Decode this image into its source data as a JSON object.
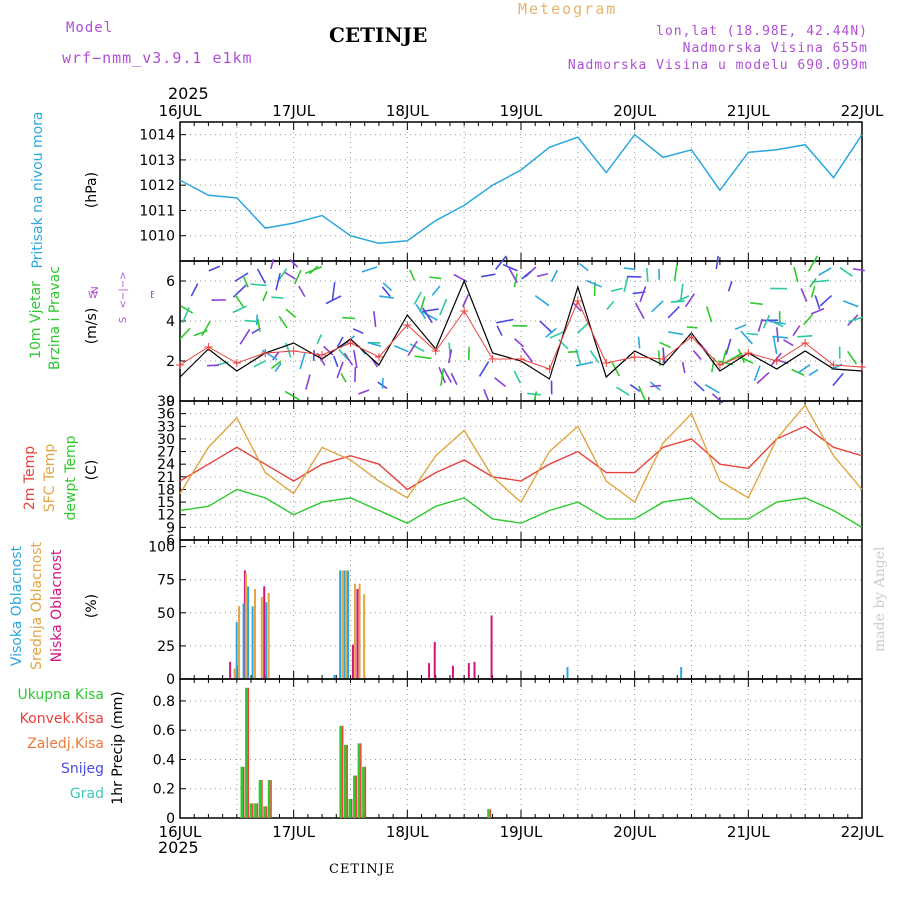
{
  "header": {
    "model_label": "Model",
    "model_name": "wrf−nmm_v3.9.1  e1km",
    "station": "CETINJE",
    "meteogram": "Meteogram",
    "coords": "lon,lat (18.98E, 42.44N)",
    "elevation": "Nadmorska Visina 655m",
    "model_elevation": "Nadmorska Visina u modelu 690.099m",
    "year_top": "2025",
    "year_bottom": "2025",
    "footer_station": "CETINJE",
    "watermark": "made by Angel"
  },
  "colors": {
    "pressure": "#2ba7e0",
    "temp2m": "#e8423c",
    "sfc": "#e2a542",
    "dewpt": "#2ec92e",
    "high_cloud": "#2ba7e0",
    "mid_cloud": "#e2a542",
    "low_cloud": "#d4127e",
    "total_precip": "#2ec92e",
    "conv_precip": "#e8423c",
    "strat_precip": "#f0793a",
    "snow": "#4a4ae0",
    "graupel": "#3fc7b8",
    "wind_speed": "#000000",
    "gust": "#e8423c",
    "compass": "#b04fd6"
  },
  "panels": {
    "pressure": {
      "label1": "Pritisak na nivou mora",
      "unit": "(hPa)"
    },
    "wind": {
      "label1": "10m Vjetar",
      "label2": "Brzina i Pravac",
      "unit": "(m/s)",
      "compass_n": "N",
      "compass_w": "W",
      "compass_e": "E",
      "compass_line": "<−|−>",
      "compass_s": "S"
    },
    "temp": {
      "label1": "2m Temp",
      "label2": "SFC Temp",
      "label3": "dewpt Temp",
      "unit": "(C)"
    },
    "cloud": {
      "label1": "Visoka Oblacnost",
      "label2": "Srednja Oblacnost",
      "label3": "Niska Oblacnost",
      "unit": "(%)"
    },
    "precip": {
      "unit": "1hr Precip (mm)",
      "legend": [
        "Ukupna Kisa",
        "Konvek.Kisa",
        "Zaledj.Kisa",
        "Snijeg",
        "Grad"
      ]
    }
  },
  "chart_data": [
    {
      "type": "line",
      "name_key": "pressure",
      "x_labels": [
        "16JUL",
        "17JUL",
        "18JUL",
        "19JUL",
        "20JUL",
        "21JUL",
        "22JUL"
      ],
      "ylabel": "(hPa)",
      "ylim": [
        1009,
        1014.5
      ],
      "yticks": [
        1010,
        1011,
        1012,
        1013,
        1014
      ],
      "x": [
        0,
        0.25,
        0.5,
        0.75,
        1.0,
        1.25,
        1.5,
        1.75,
        2.0,
        2.25,
        2.5,
        2.75,
        3.0,
        3.25,
        3.5,
        3.75,
        4.0,
        4.25,
        4.5,
        4.75,
        5.0,
        5.25,
        5.5,
        5.75,
        6.0
      ],
      "series": [
        {
          "values": [
            1012.2,
            1011.6,
            1011.5,
            1010.3,
            1010.5,
            1010.8,
            1010.0,
            1009.7,
            1009.8,
            1010.6,
            1011.2,
            1012.0,
            1012.6,
            1013.5,
            1013.9,
            1012.5,
            1014.0,
            1013.1,
            1013.4,
            1011.8,
            1013.3,
            1013.4,
            1013.6,
            1012.3,
            1014.0
          ]
        }
      ],
      "grid": true
    },
    {
      "type": "line",
      "name_key": "wind",
      "ylabel": "(m/s)",
      "ylim": [
        0,
        7
      ],
      "yticks": [
        0,
        2,
        4,
        6
      ],
      "x": [
        0,
        0.25,
        0.5,
        0.75,
        1.0,
        1.25,
        1.5,
        1.75,
        2.0,
        2.25,
        2.5,
        2.75,
        3.0,
        3.25,
        3.5,
        3.75,
        4.0,
        4.25,
        4.5,
        4.75,
        5.0,
        5.25,
        5.5,
        5.75,
        6.0
      ],
      "series": [
        {
          "values": [
            1.2,
            2.6,
            1.5,
            2.4,
            2.9,
            2.1,
            3.1,
            1.8,
            4.3,
            2.6,
            6.0,
            2.4,
            2.0,
            1.1,
            5.7,
            1.2,
            2.5,
            1.8,
            3.4,
            1.5,
            2.4,
            1.6,
            2.5,
            1.6,
            1.5
          ]
        },
        {
          "values": [
            1.8,
            2.7,
            1.9,
            2.4,
            2.5,
            2.3,
            2.9,
            2.2,
            3.8,
            2.5,
            4.5,
            2.1,
            2.1,
            1.6,
            5.0,
            1.9,
            2.2,
            2.1,
            3.2,
            1.8,
            2.4,
            2.0,
            2.9,
            1.8,
            1.7
          ]
        }
      ],
      "grid": true
    },
    {
      "type": "line",
      "name_key": "temp",
      "ylabel": "(C)",
      "ylim": [
        6,
        39
      ],
      "yticks": [
        6,
        9,
        12,
        15,
        18,
        21,
        24,
        27,
        30,
        33,
        36,
        39
      ],
      "x": [
        0,
        0.25,
        0.5,
        0.75,
        1.0,
        1.25,
        1.5,
        1.75,
        2.0,
        2.25,
        2.5,
        2.75,
        3.0,
        3.25,
        3.5,
        3.75,
        4.0,
        4.25,
        4.5,
        4.75,
        5.0,
        5.25,
        5.5,
        5.75,
        6.0
      ],
      "series": [
        {
          "values": [
            20,
            24,
            28,
            24,
            20,
            24,
            26,
            24,
            18,
            22,
            25,
            21,
            20,
            24,
            27,
            22,
            22,
            28,
            30,
            24,
            23,
            30,
            33,
            28,
            26
          ]
        },
        {
          "values": [
            17,
            28,
            35,
            22,
            17,
            28,
            25,
            20,
            16,
            26,
            32,
            21,
            15,
            27,
            33,
            20,
            15,
            29,
            36,
            20,
            16,
            30,
            38,
            26,
            18
          ]
        },
        {
          "values": [
            13,
            14,
            18,
            16,
            12,
            15,
            16,
            13,
            10,
            14,
            16,
            11,
            10,
            13,
            15,
            11,
            11,
            15,
            16,
            11,
            11,
            15,
            16,
            13,
            9
          ]
        }
      ],
      "grid": true
    },
    {
      "type": "bar",
      "name_key": "cloud",
      "ylabel": "(%)",
      "ylim": [
        0,
        105
      ],
      "yticks": [
        0,
        25,
        50,
        75,
        100
      ],
      "x": [
        0.42,
        0.48,
        0.52,
        0.55,
        0.58,
        0.62,
        0.66,
        0.72,
        0.78,
        1.38,
        1.43,
        1.47,
        1.5,
        1.54,
        1.58,
        1.62,
        2.17,
        2.22,
        2.38,
        2.52,
        2.57,
        2.72,
        3.43,
        4.43
      ],
      "series": [
        {
          "values": [
            0,
            0,
            43,
            0,
            57,
            70,
            55,
            0,
            58,
            3,
            82,
            82,
            82,
            0,
            0,
            0,
            0,
            0,
            0,
            0,
            0,
            0,
            9,
            9
          ]
        },
        {
          "values": [
            0,
            8,
            55,
            0,
            80,
            0,
            68,
            62,
            65,
            0,
            82,
            82,
            0,
            72,
            72,
            64,
            0,
            0,
            0,
            0,
            0,
            0,
            0,
            0
          ]
        },
        {
          "values": [
            13,
            10,
            0,
            82,
            0,
            0,
            0,
            70,
            0,
            0,
            0,
            0,
            26,
            68,
            0,
            0,
            12,
            28,
            10,
            12,
            13,
            48,
            0,
            0
          ]
        }
      ],
      "grid": true
    },
    {
      "type": "bar",
      "name_key": "precip",
      "ylabel": "1hr Precip (mm)",
      "ylim": [
        0,
        0.95
      ],
      "yticks": [
        0,
        0.2,
        0.4,
        0.6,
        0.8
      ],
      "x": [
        0.55,
        0.59,
        0.63,
        0.67,
        0.71,
        0.75,
        0.79,
        1.42,
        1.46,
        1.5,
        1.54,
        1.58,
        1.62,
        2.72
      ],
      "series": [
        {
          "values": [
            0.35,
            0.89,
            0.1,
            0.1,
            0.26,
            0.08,
            0.26,
            0.63,
            0.5,
            0.13,
            0.29,
            0.51,
            0.35,
            0.06
          ]
        },
        {
          "values": [
            0.35,
            0.89,
            0.1,
            0.1,
            0.26,
            0.08,
            0.26,
            0.63,
            0.5,
            0.13,
            0.29,
            0.51,
            0.35,
            0.06
          ]
        }
      ],
      "grid": true
    }
  ]
}
